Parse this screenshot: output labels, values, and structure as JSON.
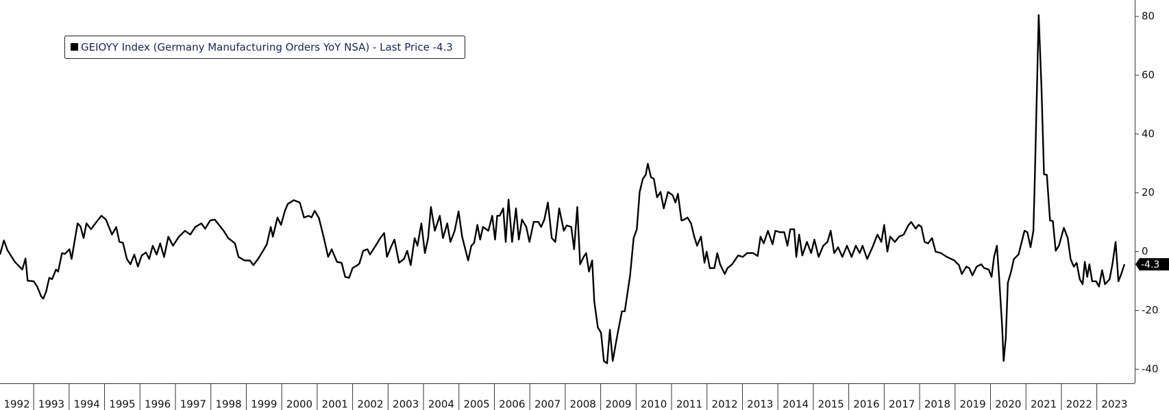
{
  "chart_data": {
    "type": "line",
    "x": [
      1992.05,
      1992.16,
      1992.26,
      1992.47,
      1992.68,
      1992.77,
      1992.83,
      1993.0,
      1993.1,
      1993.21,
      1993.27,
      1993.35,
      1993.44,
      1993.52,
      1993.63,
      1993.69,
      1993.8,
      1993.88,
      1994.01,
      1994.07,
      1994.24,
      1994.32,
      1994.41,
      1994.49,
      1994.62,
      1994.74,
      1994.91,
      1995.04,
      1995.21,
      1995.33,
      1995.42,
      1995.52,
      1995.63,
      1995.73,
      1995.84,
      1995.94,
      1996.05,
      1996.17,
      1996.26,
      1996.36,
      1996.47,
      1996.57,
      1996.68,
      1996.8,
      1996.93,
      1997.1,
      1997.27,
      1997.42,
      1997.56,
      1997.73,
      1997.84,
      1997.98,
      1998.11,
      1998.36,
      1998.49,
      1998.68,
      1998.78,
      1998.95,
      1999.1,
      1999.2,
      1999.33,
      1999.46,
      1999.58,
      1999.69,
      1999.75,
      1999.88,
      1999.98,
      2000.09,
      2000.17,
      2000.34,
      2000.51,
      2000.63,
      2000.76,
      2000.84,
      2000.93,
      2001.05,
      2001.18,
      2001.31,
      2001.41,
      2001.56,
      2001.69,
      2001.79,
      2001.9,
      2002.0,
      2002.11,
      2002.19,
      2002.3,
      2002.42,
      2002.49,
      2002.65,
      2002.78,
      2002.89,
      2002.97,
      2003.08,
      2003.18,
      2003.31,
      2003.45,
      2003.54,
      2003.64,
      2003.75,
      2003.83,
      2003.94,
      2004.04,
      2004.13,
      2004.21,
      2004.32,
      2004.46,
      2004.55,
      2004.67,
      2004.76,
      2004.88,
      2004.99,
      2005.09,
      2005.26,
      2005.35,
      2005.43,
      2005.52,
      2005.6,
      2005.68,
      2005.83,
      2005.94,
      2006.02,
      2006.08,
      2006.15,
      2006.25,
      2006.32,
      2006.4,
      2006.5,
      2006.61,
      2006.69,
      2006.78,
      2006.9,
      2006.99,
      2007.11,
      2007.24,
      2007.32,
      2007.41,
      2007.51,
      2007.62,
      2007.72,
      2007.83,
      2007.96,
      2008.04,
      2008.17,
      2008.25,
      2008.34,
      2008.42,
      2008.52,
      2008.59,
      2008.67,
      2008.76,
      2008.82,
      2008.92,
      2009.01,
      2009.09,
      2009.18,
      2009.26,
      2009.34,
      2009.47,
      2009.6,
      2009.68,
      2009.83,
      2009.93,
      2010.02,
      2010.1,
      2010.19,
      2010.27,
      2010.33,
      2010.42,
      2010.5,
      2010.59,
      2010.69,
      2010.78,
      2010.9,
      2011.03,
      2011.11,
      2011.18,
      2011.28,
      2011.36,
      2011.45,
      2011.55,
      2011.64,
      2011.72,
      2011.83,
      2011.93,
      2011.99,
      2012.08,
      2012.21,
      2012.29,
      2012.37,
      2012.5,
      2012.58,
      2012.71,
      2012.88,
      2013.01,
      2013.13,
      2013.3,
      2013.43,
      2013.51,
      2013.6,
      2013.72,
      2013.85,
      2013.93,
      2014.06,
      2014.18,
      2014.27,
      2014.35,
      2014.46,
      2014.52,
      2014.6,
      2014.69,
      2014.82,
      2014.94,
      2015.03,
      2015.15,
      2015.28,
      2015.4,
      2015.49,
      2015.59,
      2015.7,
      2015.82,
      2015.95,
      2016.08,
      2016.2,
      2016.31,
      2016.39,
      2016.52,
      2016.67,
      2016.81,
      2016.92,
      2017.0,
      2017.09,
      2017.17,
      2017.3,
      2017.42,
      2017.55,
      2017.68,
      2017.76,
      2017.89,
      2017.97,
      2018.05,
      2018.14,
      2018.24,
      2018.35,
      2018.45,
      2018.6,
      2018.77,
      2018.98,
      2019.11,
      2019.19,
      2019.32,
      2019.4,
      2019.49,
      2019.61,
      2019.74,
      2019.82,
      2019.95,
      2020.03,
      2020.1,
      2020.18,
      2020.24,
      2020.33,
      2020.37,
      2020.43,
      2020.49,
      2020.58,
      2020.66,
      2020.79,
      2020.87,
      2020.96,
      2021.04,
      2021.13,
      2021.21,
      2021.25,
      2021.32,
      2021.36,
      2021.44,
      2021.51,
      2021.59,
      2021.68,
      2021.76,
      2021.84,
      2021.93,
      2022.07,
      2022.18,
      2022.26,
      2022.35,
      2022.43,
      2022.52,
      2022.6,
      2022.66,
      2022.73,
      2022.79,
      2022.87,
      2022.98,
      2023.06,
      2023.15,
      2023.23,
      2023.36,
      2023.44,
      2023.53,
      2023.61,
      2023.69,
      2023.78
    ],
    "series": [
      {
        "name": "GEIOYY Index (Germany Manufacturing Orders YoY NSA) - Last Price -4.3",
        "color": "#000000",
        "values": [
          -1.0,
          3.8,
          0.5,
          -3.5,
          -6.1,
          -2.3,
          -9.9,
          -10.1,
          -11.9,
          -15.2,
          -16.0,
          -13.7,
          -8.9,
          -9.4,
          -6.1,
          -6.8,
          -0.5,
          -0.8,
          0.8,
          -2.5,
          9.6,
          8.6,
          4.6,
          9.6,
          7.6,
          9.6,
          12.2,
          10.9,
          5.8,
          8.4,
          3.3,
          3.0,
          -2.5,
          -4.3,
          -1.0,
          -5.1,
          -1.3,
          -0.3,
          -2.5,
          2.0,
          -1.0,
          2.8,
          -1.8,
          5.1,
          2.0,
          5.1,
          7.1,
          5.8,
          8.4,
          9.6,
          7.8,
          10.6,
          10.9,
          7.1,
          4.6,
          2.8,
          -1.8,
          -3.0,
          -3.0,
          -4.6,
          -2.5,
          0,
          2.5,
          8.4,
          5.1,
          11.6,
          9.1,
          13.9,
          16.2,
          17.5,
          16.7,
          11.6,
          12.2,
          11.6,
          13.9,
          11.4,
          5.1,
          -1.8,
          0.8,
          -3.5,
          -3.8,
          -8.6,
          -8.9,
          -5.6,
          -4.8,
          -4.1,
          0.3,
          0.8,
          -1.0,
          2.0,
          4.6,
          6.3,
          -1.8,
          1.5,
          4.1,
          -3.8,
          -2.5,
          0.3,
          -4.6,
          4.6,
          2.0,
          9.6,
          -0.5,
          4.6,
          15.2,
          7.1,
          12.2,
          4.6,
          9.6,
          3.3,
          7.1,
          13.7,
          5.1,
          -3.0,
          2.0,
          3.0,
          9.1,
          4.1,
          8.4,
          7.1,
          12.2,
          4.1,
          12.2,
          12.2,
          14.7,
          3.3,
          17.7,
          3.3,
          14.7,
          4.1,
          10.9,
          8.4,
          3.3,
          10.1,
          10.1,
          8.4,
          10.9,
          16.7,
          4.6,
          3.3,
          14.7,
          7.1,
          8.9,
          8.4,
          0.8,
          15.2,
          -4.3,
          -1.8,
          -0.5,
          -6.8,
          -3.0,
          -17.0,
          -25.8,
          -27.6,
          -37.2,
          -38.0,
          -26.6,
          -37.2,
          -28.4,
          -20.3,
          -20.3,
          -8.1,
          4.6,
          7.6,
          20.3,
          24.8,
          26.1,
          29.9,
          25.3,
          24.8,
          18.5,
          20.3,
          14.7,
          20.3,
          19.2,
          16.7,
          19.7,
          10.6,
          10.9,
          11.6,
          9.6,
          5.1,
          2.0,
          5.1,
          -3.8,
          0,
          -5.6,
          -5.6,
          -0.5,
          -4.3,
          -7.6,
          -5.6,
          -4.3,
          -1.3,
          -1.8,
          -0.5,
          -0.5,
          -1.5,
          5.1,
          2.8,
          7.1,
          2.5,
          7.1,
          6.6,
          6.6,
          2.0,
          7.6,
          7.6,
          -1.8,
          5.8,
          -1.3,
          3.3,
          -0.5,
          4.1,
          -1.8,
          2.0,
          3.3,
          7.1,
          -0.5,
          1.5,
          -1.8,
          2.0,
          -1.8,
          2.0,
          -0.5,
          2.0,
          -2.5,
          1.5,
          5.8,
          3.3,
          9.1,
          0,
          5.1,
          3.3,
          5.1,
          5.8,
          8.9,
          10.1,
          7.8,
          9.1,
          8.4,
          3.3,
          2.8,
          4.6,
          0,
          -0.5,
          -1.8,
          -3.0,
          -4.6,
          -7.6,
          -5.1,
          -5.6,
          -8.1,
          -5.1,
          -4.3,
          -5.6,
          -6.1,
          -8.6,
          -1.8,
          2.0,
          -8.1,
          -25.8,
          -37.2,
          -29.6,
          -10.6,
          -6.8,
          -2.5,
          -1.0,
          2.8,
          7.1,
          6.6,
          1.5,
          7.1,
          24.8,
          60.3,
          80.5,
          55.2,
          26.3,
          26.1,
          10.6,
          10.4,
          0.3,
          2.0,
          8.1,
          4.6,
          -2.5,
          -5.1,
          -3.8,
          -9.4,
          -11.1,
          -3.5,
          -8.6,
          -4.3,
          -10.1,
          -10.1,
          -11.9,
          -6.3,
          -11.1,
          -9.4,
          -4.3,
          3.3,
          -10.1,
          -7.6,
          -4.3
        ]
      }
    ],
    "xlim": [
      1992.05,
      2024.07
    ],
    "xticks": [
      1992,
      1993,
      1994,
      1995,
      1996,
      1997,
      1998,
      1999,
      2000,
      2001,
      2002,
      2003,
      2004,
      2005,
      2006,
      2007,
      2008,
      2009,
      2010,
      2011,
      2012,
      2013,
      2014,
      2015,
      2016,
      2017,
      2018,
      2019,
      2020,
      2021,
      2022,
      2023
    ],
    "ylim": [
      -44.8,
      85.6
    ],
    "yticks": [
      -40,
      -20,
      0,
      20,
      40,
      60,
      80
    ],
    "grid": false
  }
}
